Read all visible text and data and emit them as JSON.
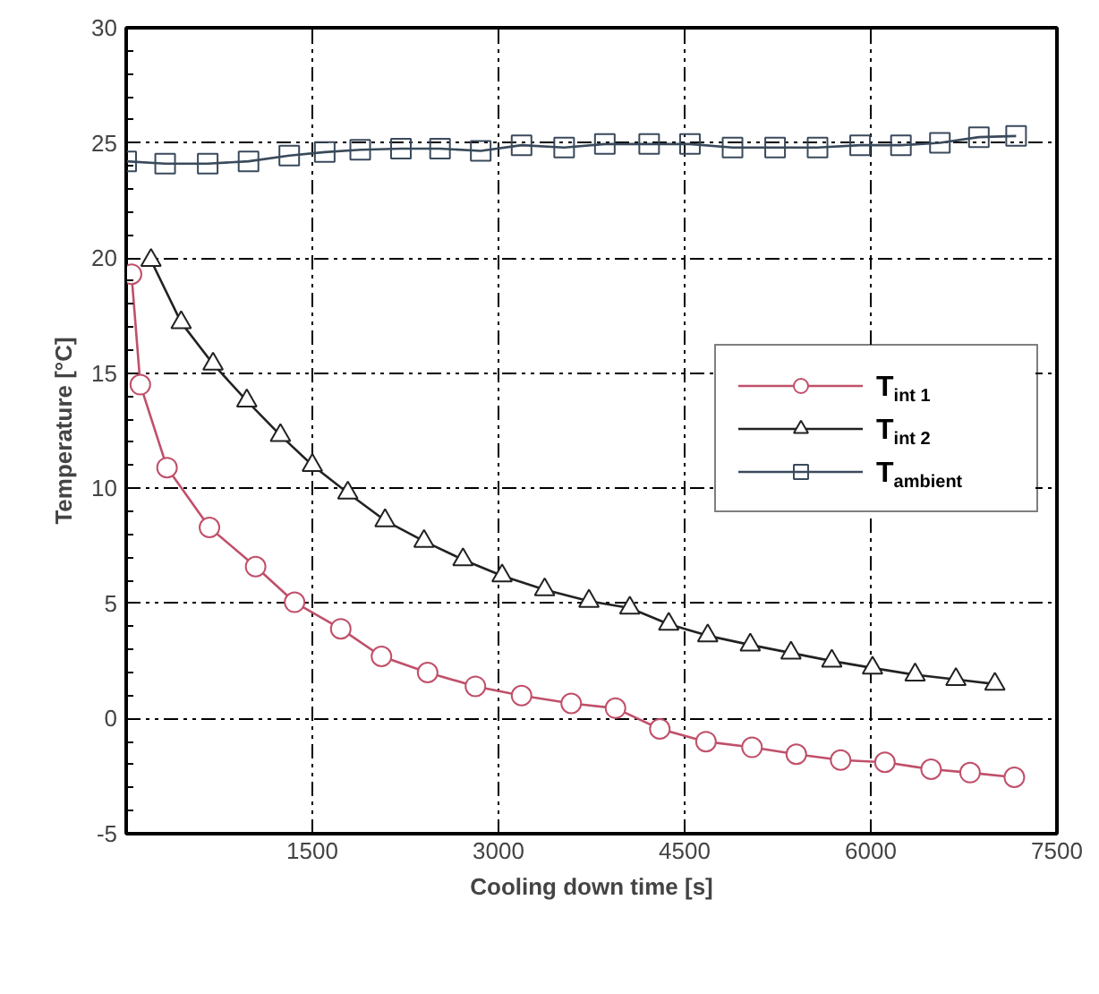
{
  "chart_data": {
    "type": "line",
    "xlabel": "Cooling down time [s]",
    "ylabel": "Temperature [°C]",
    "xlim": [
      0,
      7500
    ],
    "xticks": [
      {
        "value": 0,
        "label": null
      },
      1500,
      3000,
      4500,
      6000,
      7500
    ],
    "ylim": [
      -5,
      30
    ],
    "yticks": [
      -5,
      0,
      5,
      10,
      15,
      20,
      25,
      30
    ],
    "grid": true,
    "legend": "right",
    "line_style": "solid",
    "series": [
      {
        "name": "T$_{int 1}$",
        "color": "#c0506a",
        "marker": "circle",
        "x": [
          43,
          114,
          329,
          671,
          1043,
          1357,
          1729,
          2057,
          2429,
          2814,
          3186,
          3586,
          3943,
          4300,
          4672,
          5043,
          5400,
          5757,
          6114,
          6486,
          6800,
          7157
        ],
        "values": [
          19.3,
          14.5,
          10.9,
          8.3,
          6.6,
          5.05,
          3.9,
          2.7,
          2.0,
          1.4,
          1.0,
          0.66,
          0.45,
          -0.45,
          -1.0,
          -1.25,
          -1.55,
          -1.8,
          -1.9,
          -2.2,
          -2.35,
          -2.55
        ]
      },
      {
        "name": "T$_{int 2}$",
        "color": "#222222",
        "marker": "triangle",
        "x": [
          200,
          443,
          700,
          972,
          1243,
          1500,
          1786,
          2086,
          2400,
          2714,
          3029,
          3372,
          3729,
          4058,
          4372,
          4686,
          5029,
          5357,
          5686,
          6014,
          6357,
          6686,
          7000
        ],
        "values": [
          19.9,
          17.2,
          15.4,
          13.8,
          12.3,
          11.0,
          9.8,
          8.6,
          7.7,
          6.9,
          6.2,
          5.6,
          5.1,
          4.8,
          4.1,
          3.6,
          3.2,
          2.85,
          2.5,
          2.2,
          1.9,
          1.7,
          1.5
        ]
      },
      {
        "name": "T$_{ambient}$",
        "color": "#3a4a5c",
        "marker": "square",
        "x": [
          0,
          314,
          657,
          986,
          1314,
          1600,
          1886,
          2214,
          2529,
          2857,
          3186,
          3529,
          3857,
          4214,
          4543,
          4886,
          5229,
          5571,
          5914,
          6243,
          6557,
          6871,
          7171
        ],
        "values": [
          24.2,
          24.1,
          24.1,
          24.2,
          24.45,
          24.6,
          24.7,
          24.75,
          24.75,
          24.65,
          24.9,
          24.8,
          24.95,
          24.95,
          24.95,
          24.8,
          24.8,
          24.8,
          24.9,
          24.9,
          25.0,
          25.25,
          25.3
        ]
      }
    ]
  }
}
